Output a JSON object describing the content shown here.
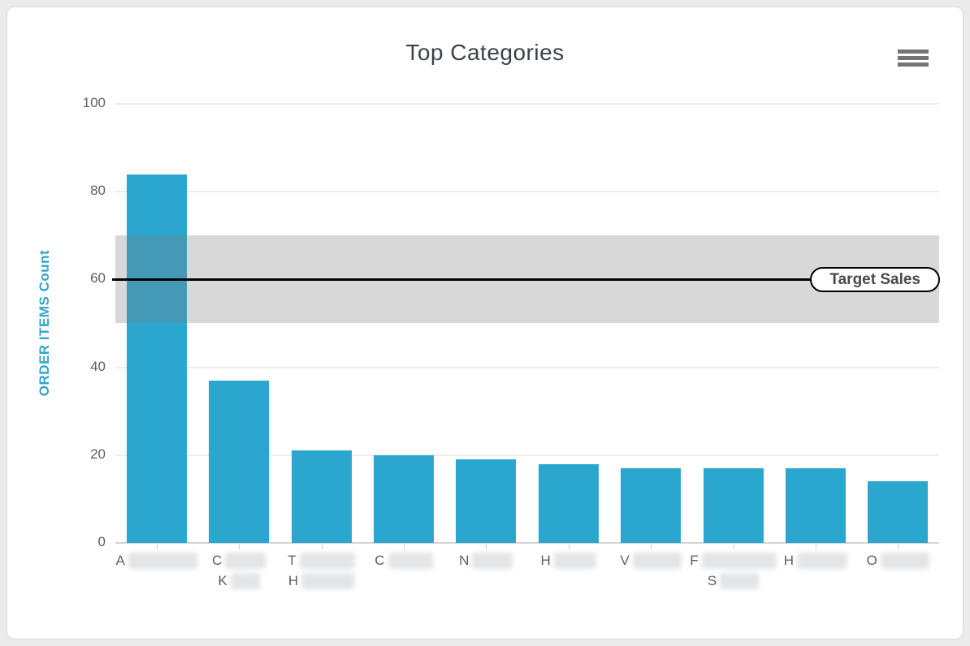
{
  "colors": {
    "page_background": "#ebebeb",
    "card_background": "#ffffff",
    "card_border": "#dadada",
    "bar": "#2ba6cf",
    "plot_band": "rgba(125,125,125,0.30)",
    "target_line": "#000000",
    "gridline": "#ececec",
    "axis_line": "#d5d5d5",
    "tick_text": "#606060",
    "title_text": "#3b434a",
    "y_axis_title_text": "#31a5cb",
    "menu_icon": "#757575"
  },
  "header": {
    "menu_icon": "hamburger-icon"
  },
  "chart_data": {
    "type": "bar",
    "title": "Top Categories",
    "xlabel": "",
    "ylabel": "ORDER ITEMS Count",
    "ylim": [
      0,
      100
    ],
    "yticks": [
      0,
      20,
      40,
      60,
      80,
      100
    ],
    "grid": true,
    "legend": "none",
    "bar_color": "#2ba6cf",
    "categories": [
      "A… (blurred)",
      "C… K… (blurred)",
      "T… H… (blurred)",
      "C… (blurred)",
      "N… (blurred)",
      "H… (blurred)",
      "V… (blurred)",
      "F… S… (blurred)",
      "H… (blurred)",
      "O… (blurred)"
    ],
    "values": [
      84,
      37,
      21,
      20,
      19,
      18,
      17,
      17,
      17,
      14
    ],
    "plot_band": {
      "from": 50,
      "to": 70,
      "color": "rgba(125,125,125,0.30)"
    },
    "plot_line": {
      "value": 60,
      "label": "Target Sales",
      "color": "#000000"
    }
  },
  "x_labels": [
    {
      "lines": [
        {
          "initial": "A",
          "blur_width": 85
        }
      ]
    },
    {
      "lines": [
        {
          "initial": "C",
          "blur_width": 50
        },
        {
          "initial": "K",
          "blur_width": 36
        }
      ]
    },
    {
      "lines": [
        {
          "initial": "T",
          "blur_width": 68
        },
        {
          "initial": "H",
          "blur_width": 65
        }
      ]
    },
    {
      "lines": [
        {
          "initial": "C",
          "blur_width": 55
        }
      ]
    },
    {
      "lines": [
        {
          "initial": "N",
          "blur_width": 50
        }
      ]
    },
    {
      "lines": [
        {
          "initial": "H",
          "blur_width": 52
        }
      ]
    },
    {
      "lines": [
        {
          "initial": "V",
          "blur_width": 60
        }
      ]
    },
    {
      "lines": [
        {
          "initial": "F",
          "blur_width": 92
        },
        {
          "initial": "S",
          "blur_width": 48
        }
      ]
    },
    {
      "lines": [
        {
          "initial": "H",
          "blur_width": 62
        }
      ]
    },
    {
      "lines": [
        {
          "initial": "O",
          "blur_width": 60
        }
      ]
    }
  ]
}
